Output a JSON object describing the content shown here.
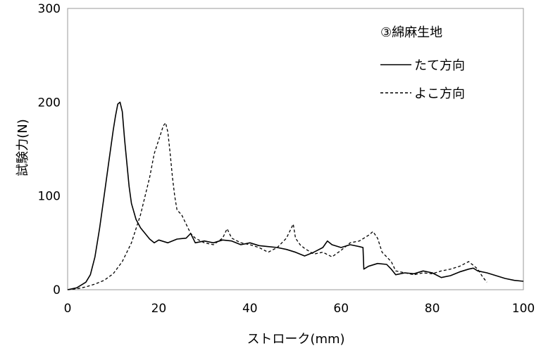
{
  "chart_data": {
    "type": "line",
    "title": "",
    "xlabel": "ストローク(mm)",
    "ylabel": "試験力(N)",
    "xlim": [
      0,
      100
    ],
    "ylim": [
      0,
      300
    ],
    "xticks": [
      0,
      20,
      40,
      60,
      80,
      100
    ],
    "yticks": [
      0,
      100,
      200,
      300
    ],
    "x_tick_labels": [
      "0",
      "20",
      "40",
      "60",
      "80",
      "100"
    ],
    "y_tick_labels": [
      "0",
      "100",
      "200",
      "300"
    ],
    "grid": false,
    "legend_position": "top-right",
    "legend_title": "③綿麻生地",
    "series": [
      {
        "name": "たて方向",
        "style": "solid",
        "color": "#000000",
        "x": [
          0,
          2,
          4,
          5,
          6,
          7,
          8,
          9,
          10,
          10.5,
          11,
          11.5,
          12,
          12.5,
          13,
          13.5,
          14,
          15,
          16,
          17,
          18,
          19,
          20,
          22,
          24,
          26,
          27,
          28,
          30,
          32,
          34,
          36,
          38,
          40,
          42,
          44,
          46,
          48,
          50,
          52,
          54,
          56,
          57,
          58,
          60,
          62,
          64,
          64.8,
          65,
          66,
          68,
          70,
          71,
          72,
          74,
          76,
          78,
          80,
          82,
          84,
          86,
          88,
          89,
          90,
          92,
          94,
          96,
          98,
          100
        ],
        "y": [
          0,
          2,
          8,
          16,
          35,
          65,
          100,
          135,
          170,
          185,
          198,
          200,
          190,
          160,
          135,
          110,
          92,
          75,
          66,
          60,
          54,
          50,
          53,
          50,
          54,
          55,
          60,
          50,
          52,
          50,
          53,
          52,
          48,
          50,
          47,
          46,
          45,
          43,
          40,
          36,
          40,
          45,
          52,
          48,
          45,
          48,
          46,
          45,
          22,
          25,
          28,
          27,
          22,
          16,
          18,
          17,
          20,
          18,
          13,
          15,
          19,
          22,
          23,
          20,
          18,
          15,
          12,
          10,
          9
        ]
      },
      {
        "name": "よこ方向",
        "style": "dashed",
        "color": "#000000",
        "x": [
          0,
          2,
          4,
          6,
          8,
          10,
          12,
          14,
          16,
          18,
          19,
          20,
          21,
          21.5,
          22,
          22.5,
          23,
          23.5,
          24,
          25,
          26,
          27,
          28,
          30,
          32,
          34,
          35,
          36,
          38,
          40,
          42,
          44,
          46,
          48,
          49.5,
          50,
          51,
          52,
          54,
          56,
          58,
          60,
          62,
          64,
          66,
          67,
          68,
          69,
          70,
          71,
          72,
          74,
          76,
          78,
          80,
          82,
          84,
          86,
          88,
          90,
          91,
          92
        ],
        "y": [
          0,
          1,
          3,
          6,
          10,
          17,
          30,
          50,
          80,
          120,
          145,
          160,
          175,
          178,
          168,
          145,
          120,
          100,
          85,
          80,
          70,
          60,
          55,
          50,
          48,
          55,
          65,
          55,
          50,
          48,
          45,
          40,
          45,
          55,
          70,
          55,
          48,
          44,
          38,
          40,
          35,
          42,
          50,
          52,
          58,
          62,
          55,
          40,
          35,
          30,
          20,
          18,
          16,
          18,
          17,
          20,
          22,
          25,
          30,
          22,
          14,
          8
        ]
      }
    ]
  }
}
